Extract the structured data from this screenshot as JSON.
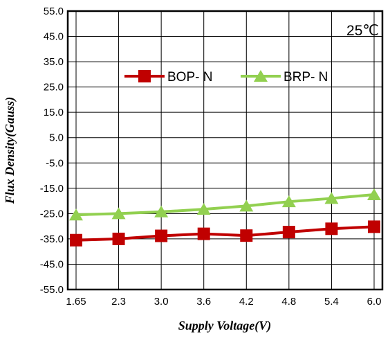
{
  "chart_data": {
    "type": "line",
    "x": [
      "1.65",
      "2.3",
      "3.0",
      "3.6",
      "4.2",
      "4.8",
      "5.4",
      "6.0"
    ],
    "y_ticks": [
      "55.0",
      "45.0",
      "35.0",
      "25.0",
      "15.0",
      "5.0",
      "-5.0",
      "-15.0",
      "-25.0",
      "-35.0",
      "-45.0",
      "-55.0"
    ],
    "ylim": [
      -55,
      55
    ],
    "xlabel": "Supply Voltage(V)",
    "ylabel": "Flux Density(Gauss)",
    "annotation": "25℃",
    "grid": true,
    "legend_position": "top-center",
    "series": [
      {
        "name": "BOP- N",
        "marker": "square",
        "color": "#C00000",
        "values": [
          -35.5,
          -35,
          -33.8,
          -33,
          -33.7,
          -32.3,
          -31,
          -30.2
        ]
      },
      {
        "name": "BRP- N",
        "marker": "triangle",
        "color": "#92D050",
        "values": [
          -25.5,
          -25,
          -24.3,
          -23.3,
          -22,
          -20.3,
          -19,
          -17.5
        ]
      }
    ]
  }
}
